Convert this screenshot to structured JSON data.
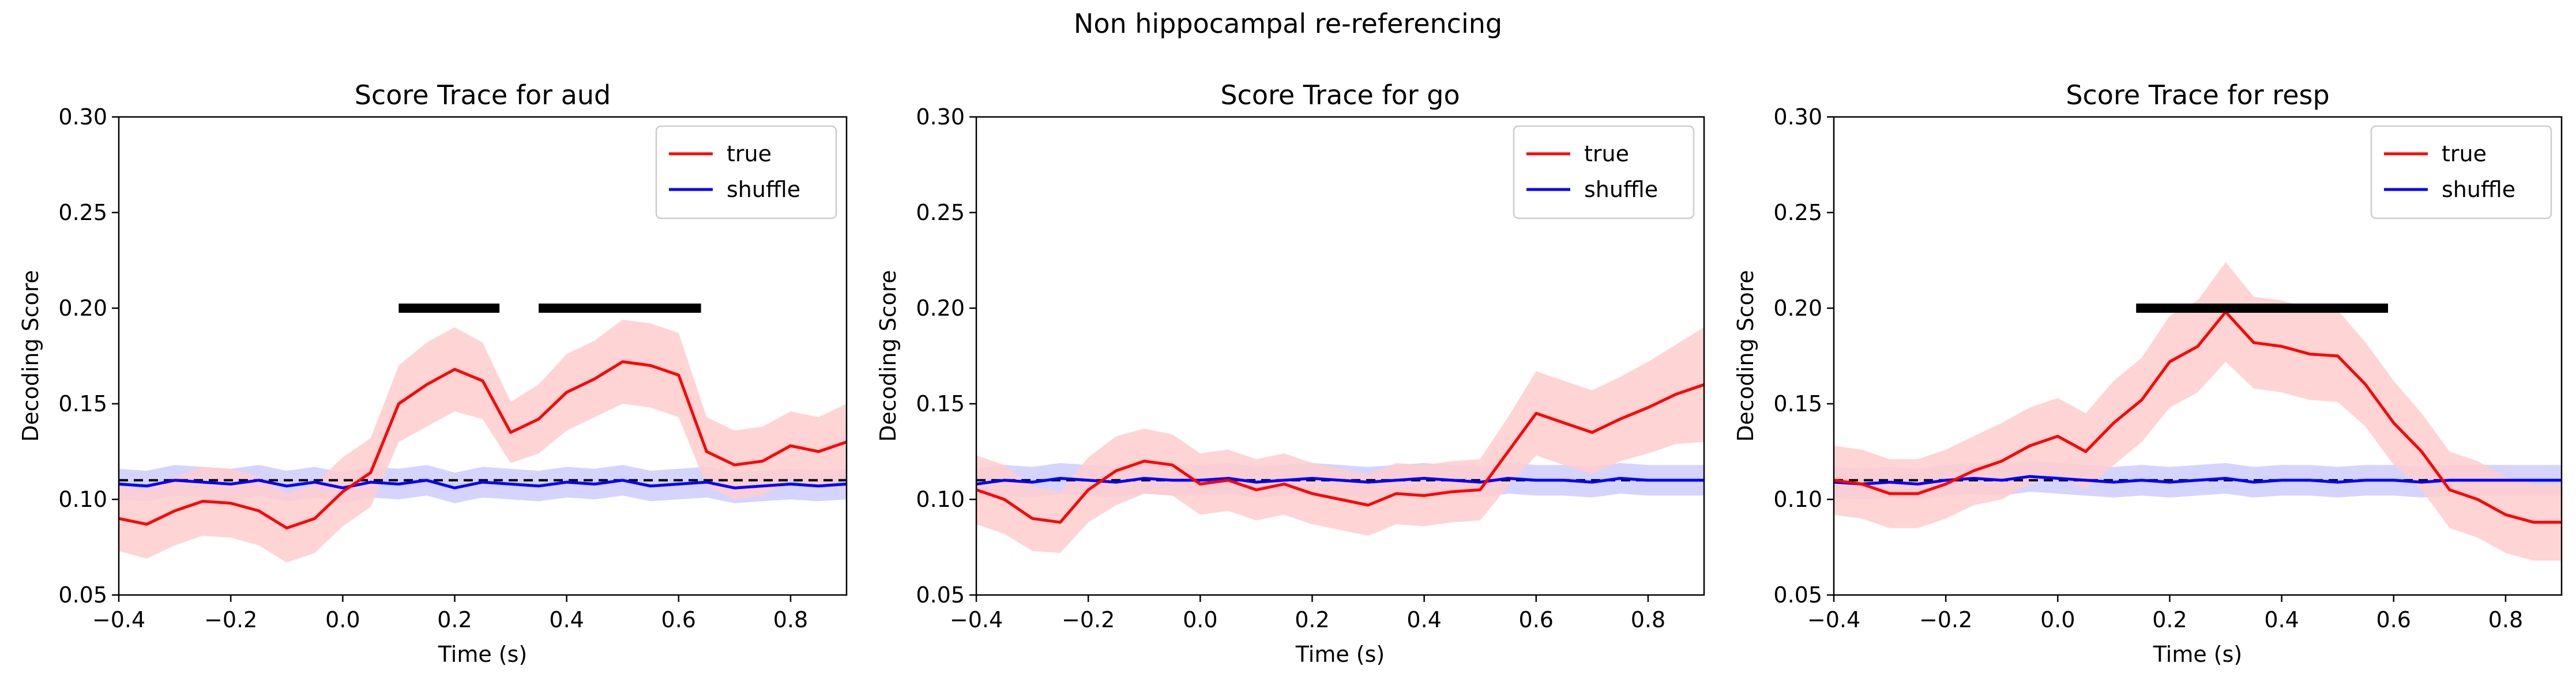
{
  "figure": {
    "suptitle": "Non hippocampal re-referencing"
  },
  "colors": {
    "true": "#ff0000",
    "shuffle": "#0000ff",
    "true_band": "#ffcccc",
    "shuffle_band": "#ccccff",
    "chance": "#000000",
    "sig": "#000000"
  },
  "chart_data": [
    {
      "type": "line",
      "title": "Score Trace for aud",
      "xlabel": "Time (s)",
      "ylabel": "Decoding Score",
      "xlim": [
        -0.4,
        0.9
      ],
      "ylim": [
        0.05,
        0.3
      ],
      "xticks": [
        -0.4,
        -0.2,
        0.0,
        0.2,
        0.4,
        0.6,
        0.8
      ],
      "xtick_labels": [
        "−0.4",
        "−0.2",
        "0.0",
        "0.2",
        "0.4",
        "0.6",
        "0.8"
      ],
      "yticks": [
        0.05,
        0.1,
        0.15,
        0.2,
        0.25,
        0.3
      ],
      "ytick_labels": [
        "0.05",
        "0.10",
        "0.15",
        "0.20",
        "0.25",
        "0.30"
      ],
      "legend": {
        "position": "top-right",
        "entries": [
          "true",
          "shuffle"
        ]
      },
      "chance_level": 0.11,
      "significance_bars": [
        [
          0.1,
          0.28
        ],
        [
          0.35,
          0.64
        ]
      ],
      "significance_y": 0.2,
      "series": [
        {
          "name": "true",
          "x": [
            -0.4,
            -0.35,
            -0.3,
            -0.25,
            -0.2,
            -0.15,
            -0.1,
            -0.05,
            0.0,
            0.05,
            0.1,
            0.15,
            0.2,
            0.25,
            0.3,
            0.35,
            0.4,
            0.45,
            0.5,
            0.55,
            0.6,
            0.65,
            0.7,
            0.75,
            0.8,
            0.85,
            0.9
          ],
          "y": [
            0.09,
            0.087,
            0.094,
            0.099,
            0.098,
            0.094,
            0.085,
            0.09,
            0.104,
            0.114,
            0.15,
            0.16,
            0.168,
            0.162,
            0.135,
            0.142,
            0.156,
            0.163,
            0.172,
            0.17,
            0.165,
            0.125,
            0.118,
            0.12,
            0.128,
            0.125,
            0.13
          ],
          "band": [
            0.017,
            0.018,
            0.018,
            0.018,
            0.018,
            0.018,
            0.018,
            0.018,
            0.018,
            0.018,
            0.02,
            0.022,
            0.022,
            0.02,
            0.016,
            0.018,
            0.02,
            0.02,
            0.022,
            0.022,
            0.022,
            0.018,
            0.018,
            0.018,
            0.018,
            0.018,
            0.02
          ]
        },
        {
          "name": "shuffle",
          "x": [
            -0.4,
            -0.35,
            -0.3,
            -0.25,
            -0.2,
            -0.15,
            -0.1,
            -0.05,
            0.0,
            0.05,
            0.1,
            0.15,
            0.2,
            0.25,
            0.3,
            0.35,
            0.4,
            0.45,
            0.5,
            0.55,
            0.6,
            0.65,
            0.7,
            0.75,
            0.8,
            0.85,
            0.9
          ],
          "y": [
            0.108,
            0.107,
            0.11,
            0.109,
            0.108,
            0.11,
            0.107,
            0.109,
            0.106,
            0.109,
            0.108,
            0.11,
            0.106,
            0.109,
            0.108,
            0.107,
            0.109,
            0.108,
            0.11,
            0.107,
            0.108,
            0.109,
            0.106,
            0.107,
            0.108,
            0.107,
            0.108
          ],
          "band": [
            0.008,
            0.008,
            0.008,
            0.008,
            0.008,
            0.008,
            0.008,
            0.008,
            0.008,
            0.008,
            0.008,
            0.008,
            0.008,
            0.008,
            0.008,
            0.008,
            0.008,
            0.008,
            0.008,
            0.008,
            0.008,
            0.008,
            0.008,
            0.008,
            0.008,
            0.008,
            0.008
          ]
        }
      ]
    },
    {
      "type": "line",
      "title": "Score Trace for go",
      "xlabel": "Time (s)",
      "ylabel": "Decoding Score",
      "xlim": [
        -0.4,
        0.9
      ],
      "ylim": [
        0.05,
        0.3
      ],
      "xticks": [
        -0.4,
        -0.2,
        0.0,
        0.2,
        0.4,
        0.6,
        0.8
      ],
      "xtick_labels": [
        "−0.4",
        "−0.2",
        "0.0",
        "0.2",
        "0.4",
        "0.6",
        "0.8"
      ],
      "yticks": [
        0.05,
        0.1,
        0.15,
        0.2,
        0.25,
        0.3
      ],
      "ytick_labels": [
        "0.05",
        "0.10",
        "0.15",
        "0.20",
        "0.25",
        "0.30"
      ],
      "legend": {
        "position": "top-right",
        "entries": [
          "true",
          "shuffle"
        ]
      },
      "chance_level": 0.11,
      "significance_bars": [],
      "significance_y": 0.2,
      "series": [
        {
          "name": "true",
          "x": [
            -0.4,
            -0.35,
            -0.3,
            -0.25,
            -0.2,
            -0.15,
            -0.1,
            -0.05,
            0.0,
            0.05,
            0.1,
            0.15,
            0.2,
            0.25,
            0.3,
            0.35,
            0.4,
            0.45,
            0.5,
            0.55,
            0.6,
            0.65,
            0.7,
            0.75,
            0.8,
            0.85,
            0.9
          ],
          "y": [
            0.105,
            0.1,
            0.09,
            0.088,
            0.105,
            0.115,
            0.12,
            0.118,
            0.108,
            0.11,
            0.105,
            0.108,
            0.103,
            0.1,
            0.097,
            0.103,
            0.102,
            0.104,
            0.105,
            0.125,
            0.145,
            0.14,
            0.135,
            0.142,
            0.148,
            0.155,
            0.16
          ],
          "band": [
            0.018,
            0.018,
            0.017,
            0.016,
            0.017,
            0.018,
            0.017,
            0.016,
            0.016,
            0.016,
            0.016,
            0.016,
            0.016,
            0.016,
            0.016,
            0.016,
            0.016,
            0.016,
            0.016,
            0.018,
            0.022,
            0.022,
            0.022,
            0.022,
            0.024,
            0.026,
            0.03
          ]
        },
        {
          "name": "shuffle",
          "x": [
            -0.4,
            -0.35,
            -0.3,
            -0.25,
            -0.2,
            -0.15,
            -0.1,
            -0.05,
            0.0,
            0.05,
            0.1,
            0.15,
            0.2,
            0.25,
            0.3,
            0.35,
            0.4,
            0.45,
            0.5,
            0.55,
            0.6,
            0.65,
            0.7,
            0.75,
            0.8,
            0.85,
            0.9
          ],
          "y": [
            0.108,
            0.11,
            0.109,
            0.111,
            0.11,
            0.109,
            0.111,
            0.11,
            0.11,
            0.111,
            0.109,
            0.11,
            0.111,
            0.11,
            0.109,
            0.11,
            0.111,
            0.11,
            0.109,
            0.111,
            0.11,
            0.11,
            0.109,
            0.111,
            0.11,
            0.11,
            0.11
          ],
          "band": [
            0.008,
            0.008,
            0.008,
            0.008,
            0.008,
            0.008,
            0.008,
            0.008,
            0.008,
            0.008,
            0.008,
            0.008,
            0.008,
            0.008,
            0.008,
            0.008,
            0.008,
            0.008,
            0.008,
            0.008,
            0.008,
            0.008,
            0.008,
            0.008,
            0.008,
            0.008,
            0.008
          ]
        }
      ]
    },
    {
      "type": "line",
      "title": "Score Trace for resp",
      "xlabel": "Time (s)",
      "ylabel": "Decoding Score",
      "xlim": [
        -0.4,
        0.9
      ],
      "ylim": [
        0.05,
        0.3
      ],
      "xticks": [
        -0.4,
        -0.2,
        0.0,
        0.2,
        0.4,
        0.6,
        0.8
      ],
      "xtick_labels": [
        "−0.4",
        "−0.2",
        "0.0",
        "0.2",
        "0.4",
        "0.6",
        "0.8"
      ],
      "yticks": [
        0.05,
        0.1,
        0.15,
        0.2,
        0.25,
        0.3
      ],
      "ytick_labels": [
        "0.05",
        "0.10",
        "0.15",
        "0.20",
        "0.25",
        "0.30"
      ],
      "legend": {
        "position": "top-right",
        "entries": [
          "true",
          "shuffle"
        ]
      },
      "chance_level": 0.11,
      "significance_bars": [
        [
          0.14,
          0.59
        ]
      ],
      "significance_y": 0.2,
      "series": [
        {
          "name": "true",
          "x": [
            -0.4,
            -0.35,
            -0.3,
            -0.25,
            -0.2,
            -0.15,
            -0.1,
            -0.05,
            0.0,
            0.05,
            0.1,
            0.15,
            0.2,
            0.25,
            0.3,
            0.35,
            0.4,
            0.45,
            0.5,
            0.55,
            0.6,
            0.65,
            0.7,
            0.75,
            0.8,
            0.85,
            0.9
          ],
          "y": [
            0.11,
            0.108,
            0.103,
            0.103,
            0.108,
            0.115,
            0.12,
            0.128,
            0.133,
            0.125,
            0.14,
            0.152,
            0.172,
            0.18,
            0.198,
            0.182,
            0.18,
            0.176,
            0.175,
            0.16,
            0.14,
            0.125,
            0.105,
            0.1,
            0.092,
            0.088,
            0.088
          ],
          "band": [
            0.018,
            0.018,
            0.018,
            0.018,
            0.018,
            0.018,
            0.02,
            0.02,
            0.02,
            0.02,
            0.022,
            0.022,
            0.024,
            0.024,
            0.026,
            0.024,
            0.024,
            0.024,
            0.024,
            0.022,
            0.022,
            0.02,
            0.02,
            0.02,
            0.02,
            0.02,
            0.02
          ]
        },
        {
          "name": "shuffle",
          "x": [
            -0.4,
            -0.35,
            -0.3,
            -0.25,
            -0.2,
            -0.15,
            -0.1,
            -0.05,
            0.0,
            0.05,
            0.1,
            0.15,
            0.2,
            0.25,
            0.3,
            0.35,
            0.4,
            0.45,
            0.5,
            0.55,
            0.6,
            0.65,
            0.7,
            0.75,
            0.8,
            0.85,
            0.9
          ],
          "y": [
            0.109,
            0.108,
            0.109,
            0.108,
            0.11,
            0.111,
            0.11,
            0.112,
            0.111,
            0.11,
            0.109,
            0.11,
            0.109,
            0.11,
            0.111,
            0.109,
            0.11,
            0.11,
            0.109,
            0.11,
            0.11,
            0.109,
            0.11,
            0.11,
            0.11,
            0.11,
            0.11
          ],
          "band": [
            0.008,
            0.008,
            0.008,
            0.008,
            0.008,
            0.008,
            0.008,
            0.008,
            0.008,
            0.008,
            0.008,
            0.008,
            0.008,
            0.008,
            0.008,
            0.008,
            0.008,
            0.008,
            0.008,
            0.008,
            0.008,
            0.008,
            0.008,
            0.008,
            0.008,
            0.008,
            0.008
          ]
        }
      ]
    }
  ]
}
